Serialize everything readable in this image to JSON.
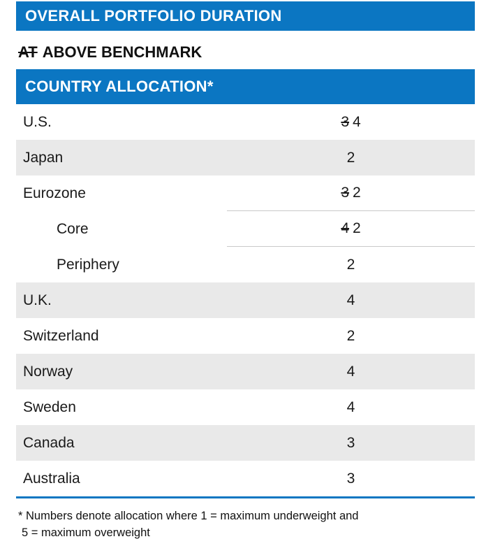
{
  "header_duration": {
    "label": "OVERALL PORTFOLIO DURATION"
  },
  "duration_status": {
    "struck": "AT",
    "text": "ABOVE BENCHMARK"
  },
  "header_allocation": {
    "label": "COUNTRY ALLOCATION*"
  },
  "table": {
    "rows": [
      {
        "label": "U.S.",
        "old": "3",
        "value": "4",
        "indent": false,
        "shaded": false,
        "rule": false
      },
      {
        "label": "Japan",
        "old": "",
        "value": "2",
        "indent": false,
        "shaded": true,
        "rule": false
      },
      {
        "label": "Eurozone",
        "old": "3",
        "value": "2",
        "indent": false,
        "shaded": false,
        "rule": true
      },
      {
        "label": "Core",
        "old": "4",
        "value": "2",
        "indent": true,
        "shaded": false,
        "rule": true
      },
      {
        "label": "Periphery",
        "old": "",
        "value": "2",
        "indent": true,
        "shaded": false,
        "rule": false
      },
      {
        "label": "U.K.",
        "old": "",
        "value": "4",
        "indent": false,
        "shaded": true,
        "rule": false
      },
      {
        "label": "Switzerland",
        "old": "",
        "value": "2",
        "indent": false,
        "shaded": false,
        "rule": false
      },
      {
        "label": "Norway",
        "old": "",
        "value": "4",
        "indent": false,
        "shaded": true,
        "rule": false
      },
      {
        "label": "Sweden",
        "old": "",
        "value": "4",
        "indent": false,
        "shaded": false,
        "rule": false
      },
      {
        "label": "Canada",
        "old": "",
        "value": "3",
        "indent": false,
        "shaded": true,
        "rule": false
      },
      {
        "label": "Australia",
        "old": "",
        "value": "3",
        "indent": false,
        "shaded": false,
        "rule": false
      }
    ]
  },
  "footnote": {
    "line1": "* Numbers denote allocation where 1 = maximum underweight and",
    "line2": "5 = maximum overweight"
  },
  "colors": {
    "accent_blue": "#0b76c2",
    "row_shade": "#e9e9e9",
    "text": "#1a1a1a",
    "rule_gray": "#c9c9c9"
  }
}
